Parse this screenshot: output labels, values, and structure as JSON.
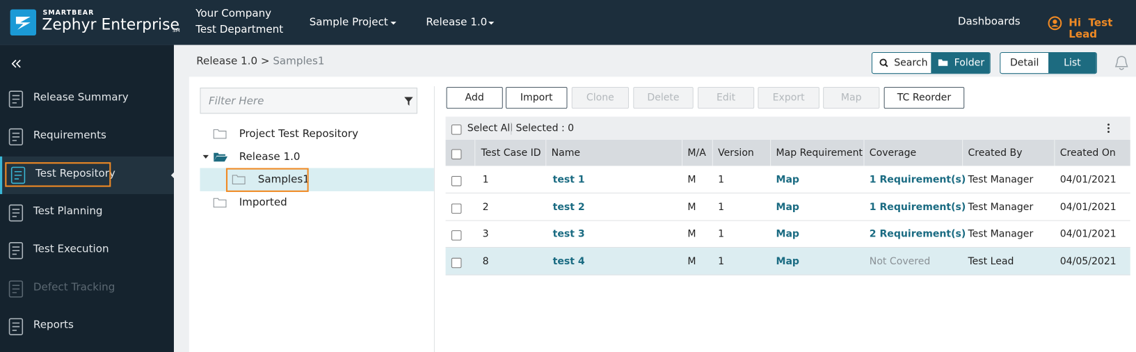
{
  "header": {
    "brand_small": "SMARTBEAR",
    "brand": "Zephyr Enterprise",
    "brand_mark": "SM",
    "company": [
      "Your Company",
      "Test Department"
    ],
    "project": "Sample Project",
    "release": "Release 1.0",
    "dashboards": "Dashboards",
    "greeting": "Hi",
    "user": "Test Lead"
  },
  "sidebar": {
    "items": [
      {
        "label": "Release Summary"
      },
      {
        "label": "Requirements"
      },
      {
        "label": "Test Repository",
        "active": true
      },
      {
        "label": "Test Planning"
      },
      {
        "label": "Test Execution"
      },
      {
        "label": "Defect Tracking",
        "disabled": true
      },
      {
        "label": "Reports"
      }
    ]
  },
  "breadcrumb": {
    "parent": "Release 1.0",
    "separator": ">",
    "current": "Samples1"
  },
  "view_buttons": {
    "search": "Search",
    "folder": "Folder",
    "detail": "Detail",
    "list": "List"
  },
  "tree": {
    "filter_placeholder": "Filter Here",
    "nodes": [
      {
        "label": "Project Test Repository",
        "level": 0
      },
      {
        "label": "Release 1.0",
        "level": 0,
        "open": true
      },
      {
        "label": "Samples1",
        "level": 1,
        "selected": true
      },
      {
        "label": "Imported",
        "level": 0
      }
    ]
  },
  "actions": [
    {
      "label": "Add",
      "enabled": true
    },
    {
      "label": "Import",
      "enabled": true
    },
    {
      "label": "Clone",
      "enabled": false
    },
    {
      "label": "Delete",
      "enabled": false
    },
    {
      "label": "Edit",
      "enabled": false
    },
    {
      "label": "Export",
      "enabled": false
    },
    {
      "label": "Map",
      "enabled": false
    },
    {
      "label": "TC Reorder",
      "enabled": true
    }
  ],
  "table": {
    "select_all": "Select All",
    "selected": "Selected : 0",
    "columns": [
      "Test Case ID",
      "Name",
      "M/A",
      "Version",
      "Map Requirement",
      "Coverage",
      "Created By",
      "Created On"
    ],
    "rows": [
      [
        "1",
        "test 1",
        "M",
        "1",
        "Map",
        "1 Requirement(s)",
        "Test Manager",
        "04/01/2021"
      ],
      [
        "2",
        "test 2",
        "M",
        "1",
        "Map",
        "1 Requirement(s)",
        "Test Manager",
        "04/01/2021"
      ],
      [
        "3",
        "test 3",
        "M",
        "1",
        "Map",
        "2 Requirement(s)",
        "Test Manager",
        "04/01/2021"
      ],
      [
        "8",
        "test 4",
        "M",
        "1",
        "Map",
        "Not Covered",
        "Test Lead",
        "04/05/2021"
      ]
    ]
  }
}
